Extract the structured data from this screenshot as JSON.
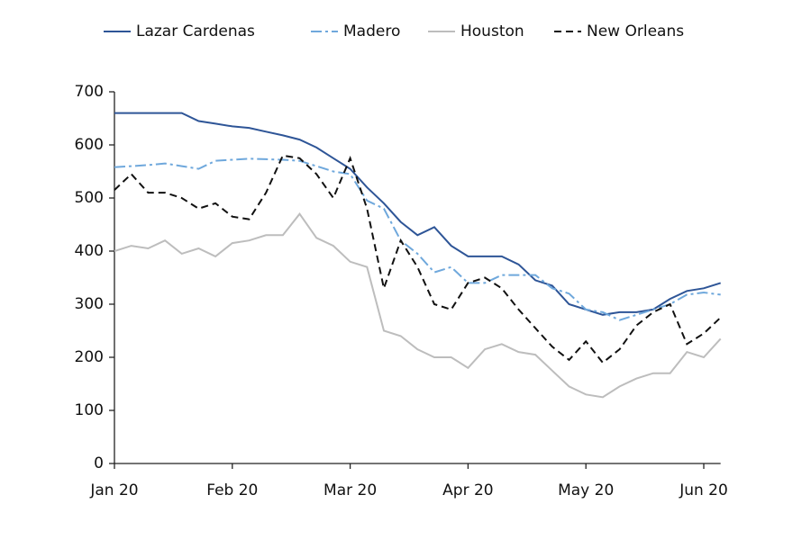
{
  "chart_data": {
    "type": "line",
    "categories": [
      "Jan 20",
      null,
      null,
      null,
      null,
      null,
      null,
      "Feb 20",
      null,
      null,
      null,
      null,
      null,
      null,
      "Mar 20",
      null,
      null,
      null,
      null,
      null,
      null,
      "Apr 20",
      null,
      null,
      null,
      null,
      null,
      null,
      "May 20",
      null,
      null,
      null,
      null,
      null,
      null,
      "Jun 20",
      null
    ],
    "series": [
      {
        "name": "Lazar Cardenas",
        "color": "#2e5597",
        "dash": "solid",
        "values": [
          660,
          660,
          660,
          660,
          660,
          645,
          640,
          635,
          632,
          625,
          618,
          610,
          595,
          575,
          555,
          520,
          490,
          455,
          430,
          445,
          410,
          390,
          390,
          390,
          375,
          345,
          335,
          300,
          290,
          280,
          285,
          285,
          290,
          310,
          325,
          330,
          340
        ]
      },
      {
        "name": "Madero",
        "color": "#6fa8dc",
        "dash": "dashdot",
        "values": [
          558,
          560,
          562,
          565,
          560,
          555,
          570,
          572,
          574,
          573,
          572,
          570,
          560,
          550,
          545,
          495,
          480,
          420,
          395,
          360,
          370,
          340,
          340,
          355,
          355,
          355,
          330,
          320,
          290,
          285,
          270,
          280,
          290,
          300,
          318,
          322,
          318
        ]
      },
      {
        "name": "Houston",
        "color": "#bdbdbd",
        "dash": "solid",
        "values": [
          400,
          410,
          405,
          420,
          395,
          405,
          390,
          415,
          420,
          430,
          430,
          470,
          425,
          410,
          380,
          370,
          250,
          240,
          215,
          200,
          200,
          180,
          215,
          225,
          210,
          205,
          175,
          145,
          130,
          125,
          145,
          160,
          170,
          170,
          210,
          200,
          235
        ]
      },
      {
        "name": "New Orleans",
        "color": "#111111",
        "dash": "dashed",
        "values": [
          515,
          545,
          510,
          510,
          500,
          480,
          490,
          465,
          460,
          510,
          580,
          575,
          545,
          500,
          575,
          480,
          330,
          420,
          370,
          300,
          290,
          340,
          350,
          330,
          290,
          255,
          220,
          195,
          230,
          190,
          215,
          260,
          285,
          300,
          225,
          245,
          275
        ]
      }
    ],
    "ylim": [
      0,
      700
    ],
    "yticks": [
      0,
      100,
      200,
      300,
      400,
      500,
      600,
      700
    ],
    "legend": "top"
  }
}
